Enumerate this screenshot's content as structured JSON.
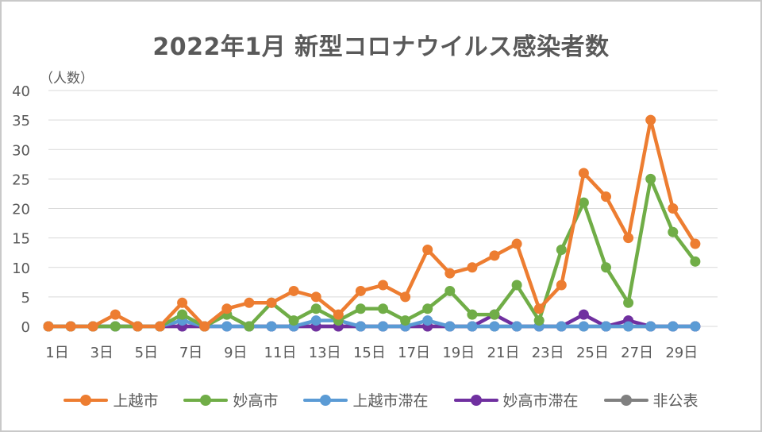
{
  "chart_data": {
    "type": "line",
    "title": "2022年1月 新型コロナウイルス感染者数",
    "ylabel": "（人数）",
    "xlabel": "",
    "ylim": [
      0,
      40
    ],
    "yticks": [
      0,
      5,
      10,
      15,
      20,
      25,
      30,
      35,
      40
    ],
    "x": [
      1,
      2,
      3,
      4,
      5,
      6,
      7,
      8,
      9,
      10,
      11,
      12,
      13,
      14,
      15,
      16,
      17,
      18,
      19,
      20,
      21,
      22,
      23,
      24,
      25,
      26,
      27,
      28,
      29,
      30,
      31
    ],
    "xticklabels": [
      "1日",
      "3日",
      "5日",
      "7日",
      "9日",
      "11日",
      "13日",
      "15日",
      "17日",
      "19日",
      "21日",
      "23日",
      "25日",
      "27日",
      "29日"
    ],
    "xtick_days": [
      1,
      3,
      5,
      7,
      9,
      11,
      13,
      15,
      17,
      19,
      21,
      23,
      25,
      27,
      29
    ],
    "grid": true,
    "legend_position": "bottom",
    "series": [
      {
        "name": "上越市",
        "color": "#ED7D31",
        "values": [
          0,
          0,
          0,
          2,
          0,
          0,
          4,
          0,
          3,
          4,
          4,
          6,
          5,
          2,
          6,
          7,
          5,
          13,
          9,
          10,
          12,
          14,
          3,
          7,
          26,
          22,
          15,
          35,
          20,
          14,
          null
        ]
      },
      {
        "name": "妙高市",
        "color": "#70AD47",
        "values": [
          0,
          0,
          0,
          0,
          0,
          0,
          2,
          0,
          2,
          0,
          4,
          1,
          3,
          1,
          3,
          3,
          1,
          3,
          6,
          2,
          2,
          7,
          1,
          13,
          21,
          10,
          4,
          25,
          16,
          11,
          null
        ]
      },
      {
        "name": "上越市滞在",
        "color": "#5B9BD5",
        "values": [
          0,
          0,
          0,
          0,
          0,
          0,
          1,
          0,
          0,
          0,
          0,
          0,
          1,
          1,
          0,
          0,
          0,
          1,
          0,
          0,
          0,
          0,
          0,
          0,
          0,
          0,
          0,
          0,
          0,
          0,
          null
        ]
      },
      {
        "name": "妙高市滞在",
        "color": "#7030A0",
        "values": [
          0,
          0,
          0,
          0,
          0,
          0,
          0,
          0,
          0,
          0,
          0,
          0,
          0,
          0,
          0,
          0,
          0,
          0,
          0,
          0,
          2,
          0,
          0,
          0,
          2,
          0,
          1,
          0,
          0,
          0,
          null
        ]
      },
      {
        "name": "非公表",
        "color": "#808080",
        "values": [
          0,
          0,
          0,
          0,
          0,
          0,
          0,
          0,
          2,
          0,
          0,
          0,
          0,
          0,
          0,
          0,
          0,
          0,
          0,
          0,
          0,
          0,
          0,
          0,
          0,
          0,
          0,
          0,
          0,
          0,
          null
        ]
      }
    ]
  }
}
